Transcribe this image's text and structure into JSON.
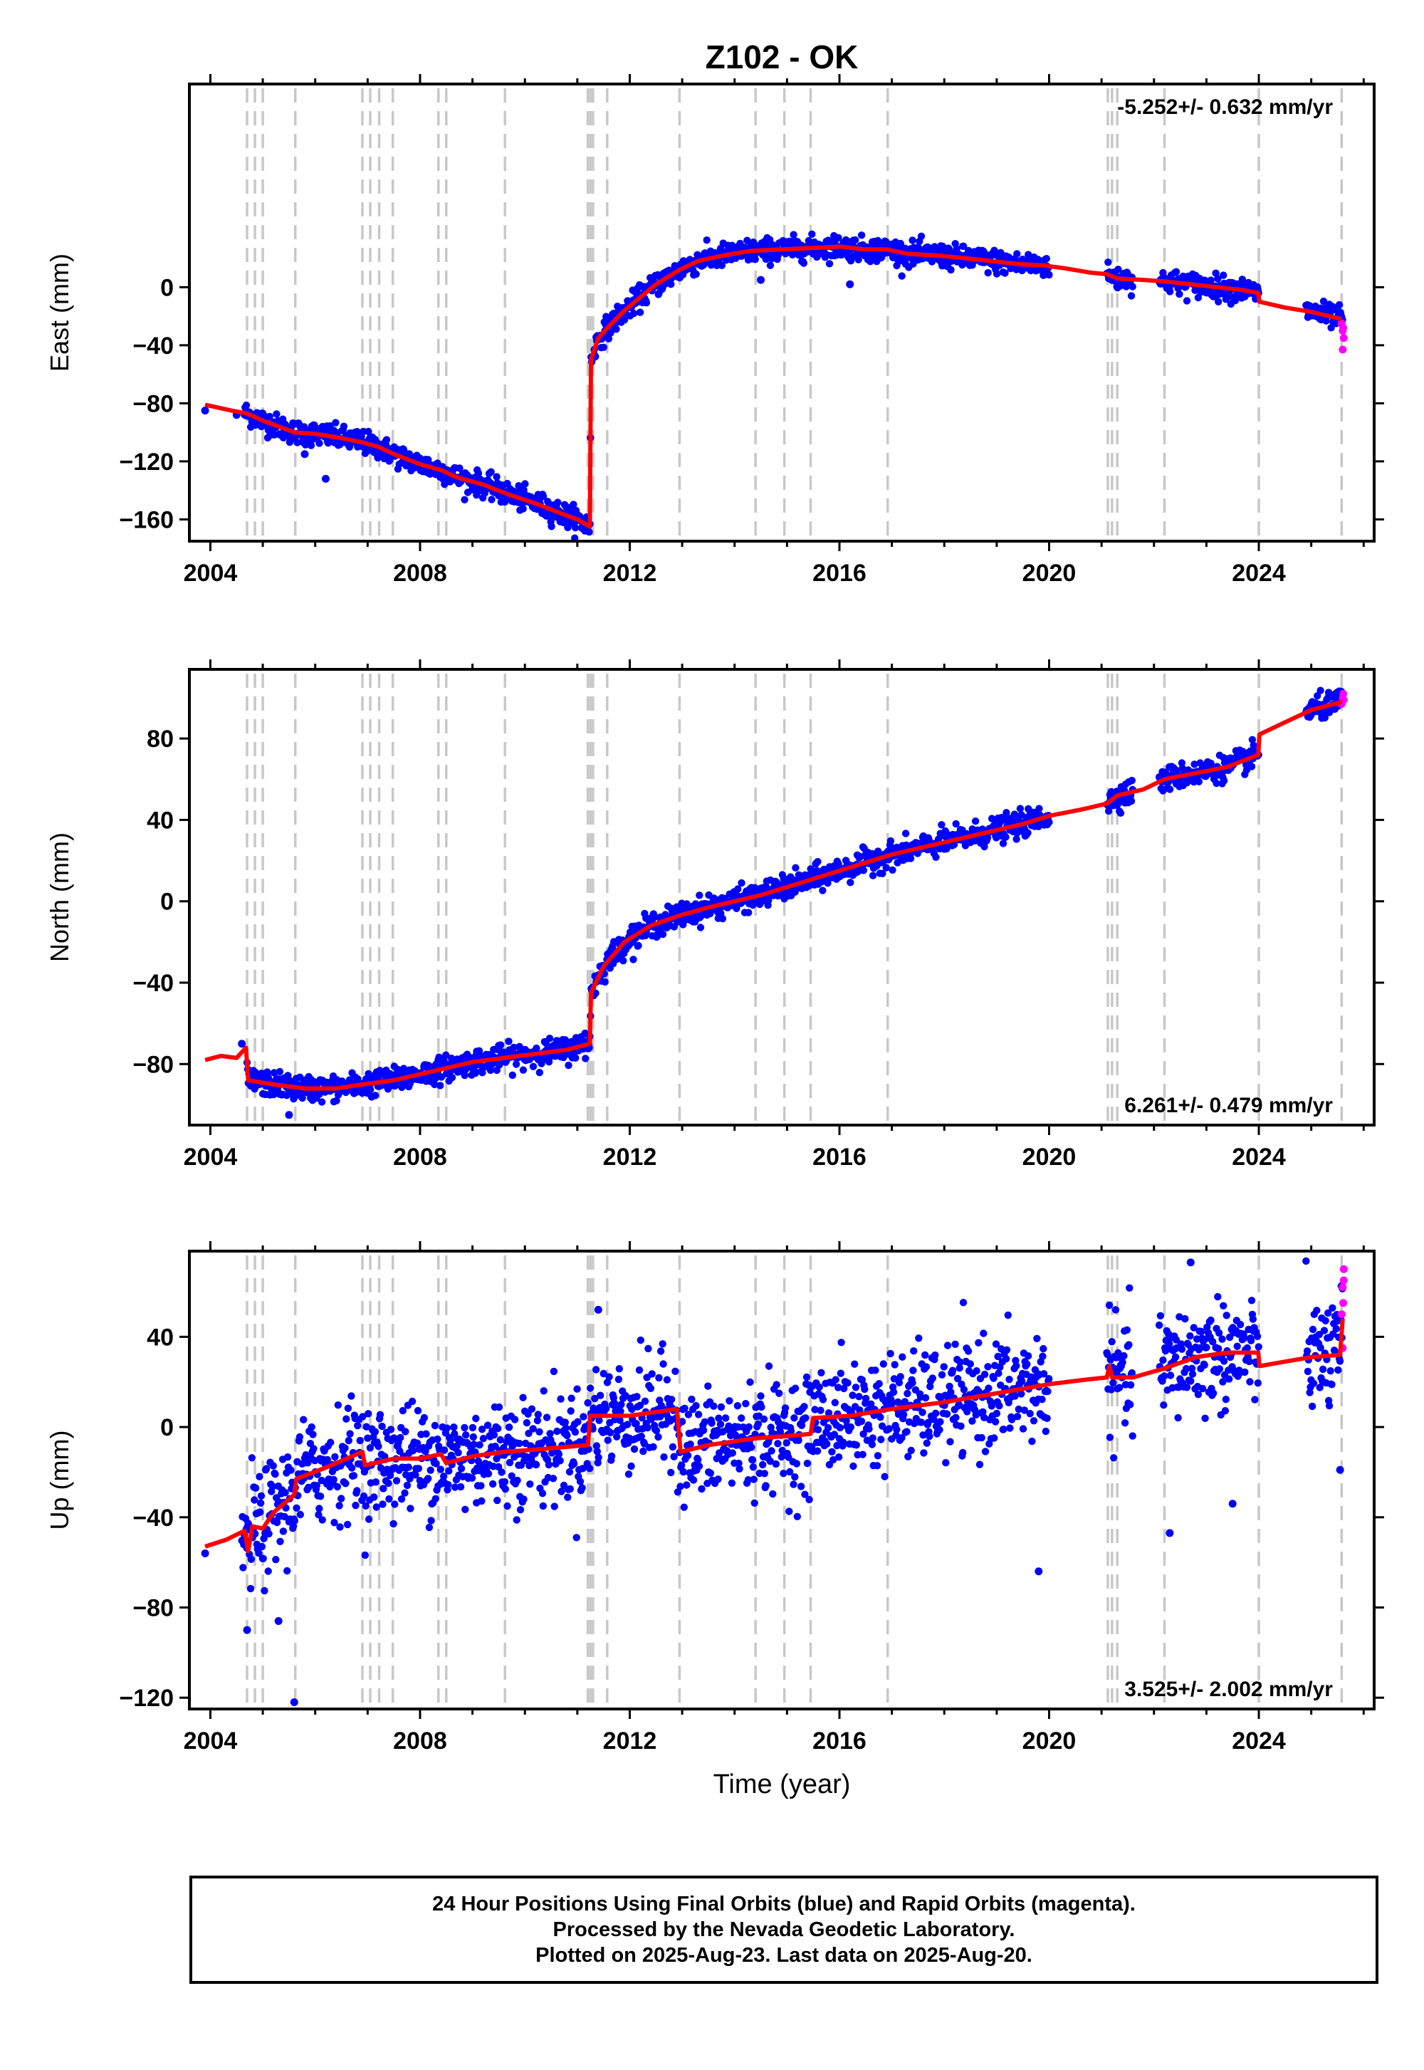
{
  "title": "Z102 - OK",
  "xlabel": "Time (year)",
  "colors": {
    "final": "#0000ff",
    "rapid": "#ff00ff",
    "model": "#ff0000",
    "steps": "#c8c8c8",
    "axis": "#000000"
  },
  "footer": {
    "line1": "24 Hour Positions Using Final Orbits (blue) and Rapid Orbits (magenta).",
    "line2": "Processed by the Nevada Geodetic Laboratory.",
    "line3": "Plotted on 2025-Aug-23. Last data on 2025-Aug-20."
  },
  "chart_data": [
    {
      "type": "scatter",
      "ylabel": "East (mm)",
      "rate_label": "-5.252+/- 0.632 mm/yr",
      "rate_position": "top-right",
      "xlim": [
        2003.6,
        2026.2
      ],
      "ylim": [
        -175,
        140
      ],
      "xticks": [
        2004,
        2008,
        2012,
        2016,
        2020,
        2024
      ],
      "yticks": [
        -160,
        -120,
        -80,
        -40,
        0
      ],
      "step_lines": [
        2004.7,
        2004.85,
        2005.0,
        2005.62,
        2006.9,
        2007.05,
        2007.22,
        2007.48,
        2008.35,
        2008.5,
        2009.62,
        2011.2,
        2011.25,
        2011.3,
        2011.57,
        2012.95,
        2014.4,
        2014.95,
        2015.45,
        2016.92,
        2021.12,
        2021.2,
        2021.3,
        2022.2,
        2024.0,
        2025.58
      ],
      "model": [
        [
          2003.9,
          -81
        ],
        [
          2004.4,
          -85
        ],
        [
          2004.7,
          -87
        ],
        [
          2005.0,
          -92
        ],
        [
          2005.6,
          -100
        ],
        [
          2006.0,
          -101
        ],
        [
          2006.5,
          -104
        ],
        [
          2006.9,
          -107
        ],
        [
          2007.2,
          -110
        ],
        [
          2007.5,
          -115
        ],
        [
          2008.0,
          -122
        ],
        [
          2008.4,
          -126
        ],
        [
          2008.7,
          -131
        ],
        [
          2009.2,
          -136
        ],
        [
          2009.7,
          -143
        ],
        [
          2010.2,
          -149
        ],
        [
          2010.7,
          -156
        ],
        [
          2011.0,
          -160
        ],
        [
          2011.24,
          -165
        ],
        [
          2011.26,
          -50
        ],
        [
          2011.4,
          -35
        ],
        [
          2011.6,
          -27
        ],
        [
          2011.9,
          -16
        ],
        [
          2012.2,
          -7
        ],
        [
          2012.5,
          2
        ],
        [
          2012.95,
          12
        ],
        [
          2013.3,
          18
        ],
        [
          2013.8,
          22
        ],
        [
          2014.3,
          25
        ],
        [
          2014.9,
          26
        ],
        [
          2015.5,
          27
        ],
        [
          2016.0,
          28
        ],
        [
          2016.5,
          26
        ],
        [
          2016.9,
          26
        ],
        [
          2017.3,
          23
        ],
        [
          2017.8,
          22
        ],
        [
          2018.4,
          20
        ],
        [
          2018.9,
          18
        ],
        [
          2019.4,
          16
        ],
        [
          2019.9,
          15
        ],
        [
          2020.3,
          13
        ],
        [
          2020.8,
          10
        ],
        [
          2021.1,
          9
        ],
        [
          2021.3,
          6
        ],
        [
          2021.8,
          5
        ],
        [
          2022.2,
          4
        ],
        [
          2022.7,
          2
        ],
        [
          2023.2,
          0
        ],
        [
          2023.7,
          -2
        ],
        [
          2023.99,
          -4
        ],
        [
          2024.01,
          -10
        ],
        [
          2024.5,
          -14
        ],
        [
          2025.0,
          -17
        ],
        [
          2025.58,
          -22
        ]
      ],
      "noise": 4,
      "data_ranges": [
        [
          2004.65,
          2020.0
        ],
        [
          2021.1,
          2021.6
        ],
        [
          2022.1,
          2024.0
        ],
        [
          2024.9,
          2025.6
        ]
      ],
      "outliers": [
        [
          2003.9,
          -85
        ],
        [
          2006.2,
          -132
        ],
        [
          2005.8,
          -115
        ],
        [
          2014.5,
          5
        ],
        [
          2016.2,
          2
        ],
        [
          2004.5,
          -88
        ]
      ],
      "rapid": [
        [
          2025.58,
          -25
        ],
        [
          2025.6,
          -30
        ],
        [
          2025.62,
          -35
        ],
        [
          2025.6,
          -43
        ],
        [
          2025.61,
          -28
        ]
      ]
    },
    {
      "type": "scatter",
      "ylabel": "North (mm)",
      "rate_label": "6.261+/- 0.479 mm/yr",
      "rate_position": "bottom-right",
      "xlim": [
        2003.6,
        2026.2
      ],
      "ylim": [
        -110,
        114
      ],
      "xticks": [
        2004,
        2008,
        2012,
        2016,
        2020,
        2024
      ],
      "yticks": [
        -80,
        -40,
        0,
        40,
        80
      ],
      "step_lines": [
        2004.7,
        2004.85,
        2005.0,
        2005.62,
        2006.9,
        2007.05,
        2007.22,
        2007.48,
        2008.35,
        2008.5,
        2009.62,
        2011.2,
        2011.25,
        2011.3,
        2011.57,
        2012.95,
        2014.4,
        2014.95,
        2015.45,
        2016.92,
        2021.12,
        2021.2,
        2021.3,
        2022.2,
        2024.0,
        2025.58
      ],
      "model": [
        [
          2003.9,
          -78
        ],
        [
          2004.2,
          -76
        ],
        [
          2004.5,
          -77
        ],
        [
          2004.68,
          -72
        ],
        [
          2004.72,
          -88
        ],
        [
          2005.2,
          -90
        ],
        [
          2005.8,
          -92
        ],
        [
          2006.4,
          -92
        ],
        [
          2006.9,
          -90
        ],
        [
          2007.5,
          -88
        ],
        [
          2008.0,
          -85
        ],
        [
          2008.5,
          -82
        ],
        [
          2009.0,
          -79
        ],
        [
          2009.6,
          -77
        ],
        [
          2010.2,
          -75
        ],
        [
          2010.8,
          -73
        ],
        [
          2011.24,
          -70
        ],
        [
          2011.26,
          -45
        ],
        [
          2011.5,
          -32
        ],
        [
          2011.9,
          -20
        ],
        [
          2012.4,
          -12
        ],
        [
          2012.95,
          -7
        ],
        [
          2013.5,
          -3
        ],
        [
          2014.0,
          0
        ],
        [
          2014.5,
          3
        ],
        [
          2015.0,
          7
        ],
        [
          2015.5,
          11
        ],
        [
          2016.0,
          15
        ],
        [
          2016.5,
          19
        ],
        [
          2017.0,
          23
        ],
        [
          2017.5,
          26
        ],
        [
          2018.0,
          29
        ],
        [
          2018.5,
          32
        ],
        [
          2019.0,
          35
        ],
        [
          2019.5,
          38
        ],
        [
          2020.0,
          42
        ],
        [
          2020.6,
          45
        ],
        [
          2021.1,
          48
        ],
        [
          2021.3,
          52
        ],
        [
          2021.8,
          55
        ],
        [
          2022.2,
          60
        ],
        [
          2022.8,
          63
        ],
        [
          2023.4,
          66
        ],
        [
          2023.99,
          72
        ],
        [
          2024.01,
          82
        ],
        [
          2024.5,
          88
        ],
        [
          2025.0,
          94
        ],
        [
          2025.58,
          98
        ]
      ],
      "noise": 3,
      "data_ranges": [
        [
          2004.7,
          2020.0
        ],
        [
          2021.1,
          2021.6
        ],
        [
          2022.1,
          2024.0
        ],
        [
          2024.9,
          2025.6
        ]
      ],
      "outliers": [
        [
          2005.5,
          -105
        ],
        [
          2011.15,
          -65
        ],
        [
          2004.6,
          -70
        ]
      ],
      "rapid": [
        [
          2025.58,
          97
        ],
        [
          2025.6,
          100
        ],
        [
          2025.62,
          99
        ],
        [
          2025.61,
          102
        ]
      ]
    },
    {
      "type": "scatter",
      "ylabel": "Up (mm)",
      "rate_label": "3.525+/- 2.002 mm/yr",
      "rate_position": "bottom-right",
      "xlim": [
        2003.6,
        2026.2
      ],
      "ylim": [
        -125,
        78
      ],
      "xticks": [
        2004,
        2008,
        2012,
        2016,
        2020,
        2024
      ],
      "yticks": [
        -120,
        -80,
        -40,
        0,
        40
      ],
      "step_lines": [
        2004.7,
        2004.85,
        2005.0,
        2005.62,
        2006.9,
        2007.05,
        2007.22,
        2007.48,
        2008.35,
        2008.5,
        2009.62,
        2011.2,
        2011.25,
        2011.3,
        2011.57,
        2012.95,
        2014.4,
        2014.95,
        2015.45,
        2016.92,
        2021.12,
        2021.2,
        2021.3,
        2022.2,
        2024.0,
        2025.58
      ],
      "model": [
        [
          2003.9,
          -53
        ],
        [
          2004.3,
          -50
        ],
        [
          2004.65,
          -46
        ],
        [
          2004.72,
          -55
        ],
        [
          2004.8,
          -44
        ],
        [
          2005.0,
          -45
        ],
        [
          2005.2,
          -38
        ],
        [
          2005.6,
          -30
        ],
        [
          2005.64,
          -23
        ],
        [
          2006.2,
          -18
        ],
        [
          2006.9,
          -11
        ],
        [
          2006.95,
          -17
        ],
        [
          2007.5,
          -14
        ],
        [
          2008.0,
          -14
        ],
        [
          2008.4,
          -12
        ],
        [
          2008.5,
          -16
        ],
        [
          2009.0,
          -13
        ],
        [
          2009.6,
          -11
        ],
        [
          2010.2,
          -10
        ],
        [
          2011.2,
          -8
        ],
        [
          2011.25,
          5
        ],
        [
          2012.0,
          5
        ],
        [
          2012.9,
          8
        ],
        [
          2012.97,
          -11
        ],
        [
          2013.5,
          -8
        ],
        [
          2014.4,
          -5
        ],
        [
          2015.0,
          -4
        ],
        [
          2015.45,
          -3
        ],
        [
          2015.5,
          4
        ],
        [
          2016.2,
          5
        ],
        [
          2017.0,
          8
        ],
        [
          2018.0,
          11
        ],
        [
          2019.0,
          15
        ],
        [
          2020.0,
          19
        ],
        [
          2020.7,
          21
        ],
        [
          2021.1,
          22
        ],
        [
          2021.15,
          27
        ],
        [
          2021.2,
          22
        ],
        [
          2021.6,
          22
        ],
        [
          2022.2,
          26
        ],
        [
          2022.8,
          31
        ],
        [
          2023.4,
          33
        ],
        [
          2023.99,
          33
        ],
        [
          2024.01,
          27
        ],
        [
          2024.5,
          29
        ],
        [
          2025.0,
          31
        ],
        [
          2025.55,
          32
        ],
        [
          2025.6,
          48
        ]
      ],
      "noise": 12,
      "data_ranges": [
        [
          2004.6,
          2020.0
        ],
        [
          2021.1,
          2021.6
        ],
        [
          2022.1,
          2024.0
        ],
        [
          2024.9,
          2025.6
        ]
      ],
      "outliers": [
        [
          2003.9,
          -56
        ],
        [
          2005.6,
          -122
        ],
        [
          2004.7,
          -90
        ],
        [
          2005.3,
          -86
        ],
        [
          2019.8,
          -64
        ],
        [
          2022.3,
          -47
        ],
        [
          2023.5,
          -34
        ],
        [
          2022.7,
          73
        ],
        [
          2011.4,
          52
        ],
        [
          2025.55,
          -19
        ]
      ],
      "rapid": [
        [
          2025.6,
          62
        ],
        [
          2025.62,
          70
        ],
        [
          2025.58,
          50
        ],
        [
          2025.61,
          55
        ],
        [
          2025.6,
          35
        ],
        [
          2025.62,
          65
        ]
      ]
    }
  ]
}
